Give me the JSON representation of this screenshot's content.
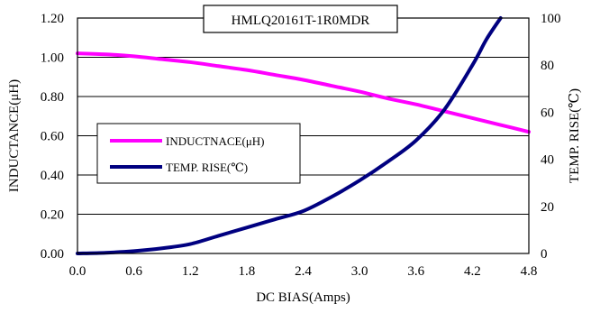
{
  "chart_data": {
    "type": "line",
    "title": "HMLQ20161T-1R0MDR",
    "xlabel": "DC BIAS(Amps)",
    "ylabel_left": "INDUCTANCE(μH)",
    "ylabel_right": "TEMP. RISE(℃)",
    "xlim": [
      0,
      4.8
    ],
    "ylim_left": [
      0,
      1.2
    ],
    "ylim_right": [
      0,
      100
    ],
    "grid": "horizontal",
    "legend_position": "left-center",
    "x_ticks": [
      "0.0",
      "0.6",
      "1.2",
      "1.8",
      "2.4",
      "3.0",
      "3.6",
      "4.2",
      "4.8"
    ],
    "y_left_ticks": [
      "0.00",
      "0.20",
      "0.40",
      "0.60",
      "0.80",
      "1.00",
      "1.20"
    ],
    "y_right_ticks": [
      "0",
      "20",
      "40",
      "60",
      "80",
      "100"
    ],
    "series": [
      {
        "name": "INDUCTNACE(μH)",
        "axis": "left",
        "color": "#ff00ff",
        "x": [
          0.0,
          0.3,
          0.6,
          0.9,
          1.2,
          1.5,
          1.8,
          2.1,
          2.4,
          2.7,
          3.0,
          3.3,
          3.6,
          3.9,
          4.2,
          4.5,
          4.8
        ],
        "y": [
          1.02,
          1.015,
          1.005,
          0.99,
          0.975,
          0.955,
          0.935,
          0.91,
          0.885,
          0.855,
          0.825,
          0.79,
          0.76,
          0.725,
          0.69,
          0.655,
          0.62
        ]
      },
      {
        "name": "TEMP. RISE(℃)",
        "axis": "right",
        "color": "#000080",
        "x": [
          0.0,
          0.3,
          0.6,
          0.9,
          1.2,
          1.5,
          1.8,
          2.1,
          2.4,
          2.7,
          3.0,
          3.3,
          3.6,
          3.9,
          4.2,
          4.35,
          4.5
        ],
        "y": [
          0,
          0.3,
          1,
          2.2,
          4,
          7.5,
          11,
          14.5,
          18,
          24,
          31,
          39,
          48,
          61,
          80,
          91,
          100
        ]
      }
    ]
  }
}
